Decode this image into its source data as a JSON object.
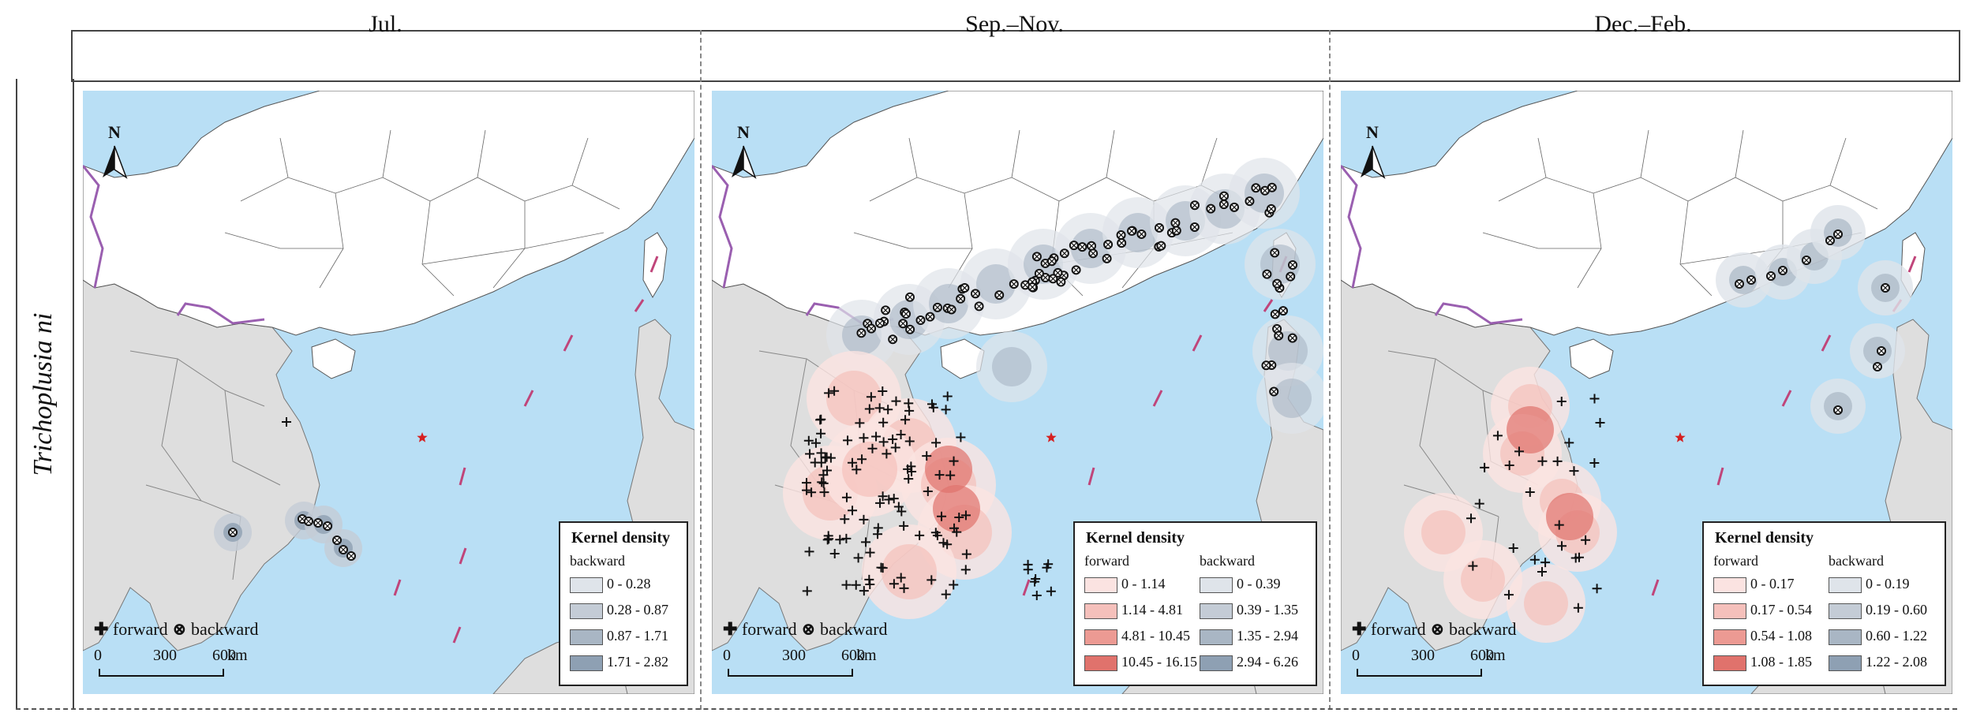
{
  "columns": [
    {
      "title": "Jul."
    },
    {
      "title": "Sep.–Nov."
    },
    {
      "title": "Dec.–Feb."
    }
  ],
  "row_label": "Trichoplusia ni",
  "map_common": {
    "north_label": "N",
    "forward_label": "forward",
    "backward_label": "backward",
    "scale_ticks": [
      "0",
      "300",
      "600"
    ],
    "scale_unit": "km",
    "legend_title": "Kernel density",
    "colors": {
      "sea": "#b9dff5",
      "land_other": "#dedede",
      "china": "#ffffff",
      "border_china": "#9a5fb0",
      "forward_ramp": [
        "#fbe3e1",
        "#f5c0bb",
        "#ec9a93",
        "#e0726c"
      ],
      "backward_ramp": [
        "#dfe4ea",
        "#c4ccd6",
        "#a9b6c4",
        "#8ea0b3"
      ],
      "star": "#d62020",
      "dash_line": "#c0457a"
    }
  },
  "panels": [
    {
      "name": "jul",
      "legend": {
        "forward": [],
        "backward": [
          "0 - 0.28",
          "0.28 - 0.87",
          "0.87 - 1.71",
          "1.71 - 2.82"
        ]
      }
    },
    {
      "name": "sep-nov",
      "legend": {
        "forward": [
          "0 - 1.14",
          "1.14 - 4.81",
          "4.81 - 10.45",
          "10.45 - 16.15"
        ],
        "backward": [
          "0 - 0.39",
          "0.39 - 1.35",
          "1.35 - 2.94",
          "2.94 - 6.26"
        ]
      }
    },
    {
      "name": "dec-feb",
      "legend": {
        "forward": [
          "0 - 0.17",
          "0.17 - 0.54",
          "0.54 - 1.08",
          "1.08 - 1.85"
        ],
        "backward": [
          "0 - 0.19",
          "0.19 - 0.60",
          "0.60 - 1.22",
          "1.22 - 2.08"
        ]
      }
    }
  ]
}
